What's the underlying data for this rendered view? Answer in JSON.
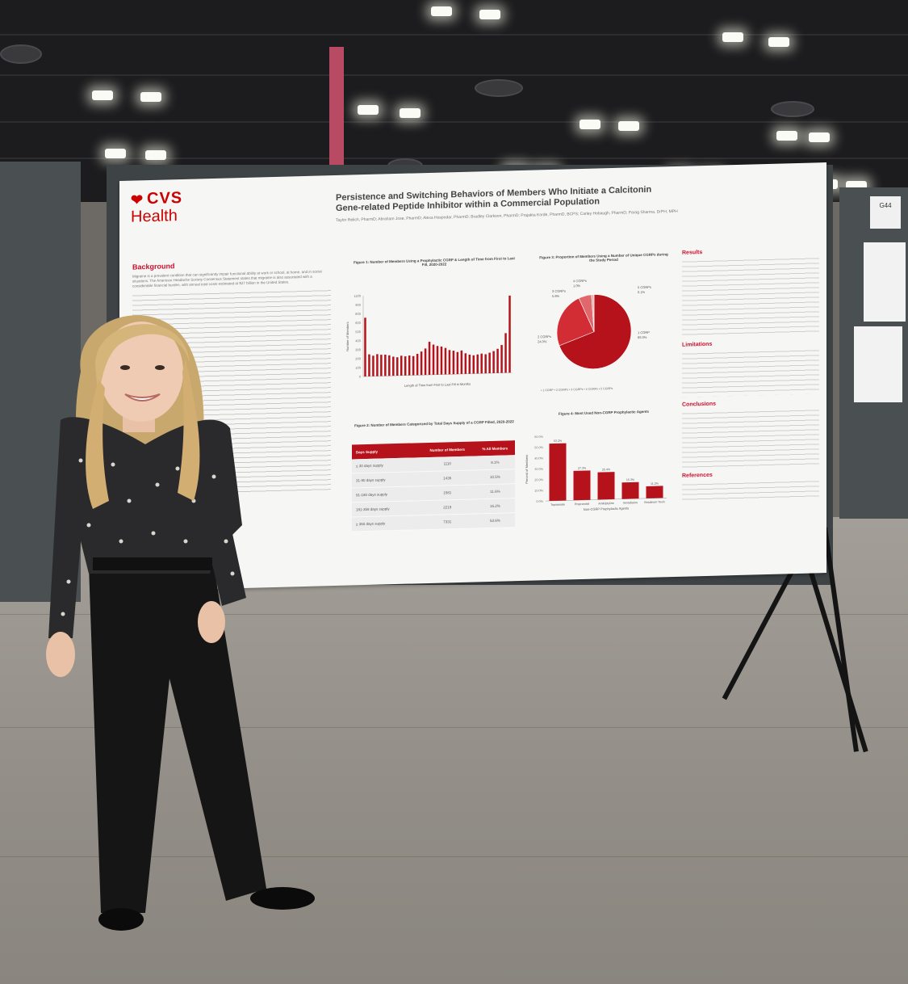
{
  "poster": {
    "logo_cvs": "CVS",
    "logo_health": "Health",
    "title_line1": "Persistence and Switching Behaviors of Members Who Initiate a Calcitonin",
    "title_line2": "Gene-related Peptide Inhibitor within a Commercial Population",
    "authors": "Taylor Relich, PharmD; Abraham Jose, PharmD; Alexa Hospodar, PharmD; Bradley Clarkson, PharmD; Prajakta Korde, PharmD, BCPS; Carley Hobaugh, PharmD; Parag Sharma, DrPH, MPH",
    "background_heading": "Background",
    "background_text": "Migraine is a prevalent condition that can significantly impair functional ability at work or school, at home, and in social situations. The American Headache Society Consensus Statement states that migraine is also associated with a considerable financial burden, with annual total costs estimated at $27 billion in the United States.",
    "results_heading": "Results",
    "limitations_heading": "Limitations",
    "conclusions_heading": "Conclusions",
    "references_heading": "References",
    "fig1_title": "Figure 1: Number of Members Using a Prophylactic CGRP & Length of Time from First to Last Fill, 2020-2022",
    "fig1_ylabel": "Number of Members",
    "fig1_xlabel": "Length of Time from First to Last Fill in Months",
    "fig1_yticks": [
      "1100",
      "900",
      "800",
      "600",
      "500",
      "400",
      "300",
      "200",
      "100",
      "0"
    ],
    "fig2_title": "Figure 2: Number of Members Categorized by Total Days Supply of a CGRP Filled, 2020-2022",
    "table": {
      "headers": [
        "Days Supply",
        "Number of Members",
        "% All Members"
      ],
      "rows": [
        [
          "≤ 30 days supply",
          "1110",
          "8.1%"
        ],
        [
          "31-90 days supply",
          "1435",
          "10.5%"
        ],
        [
          "91-180 days supply",
          "1581",
          "11.6%"
        ],
        [
          "181-359 days supply",
          "2219",
          "16.2%"
        ],
        [
          "≥ 360 days supply",
          "7331",
          "53.6%"
        ]
      ]
    },
    "fig3_title": "Figure 3: Proportion of Members Using a Number of Unique CGRPs during the Study Period",
    "fig3_labels": {
      "four": "4 CGRPs",
      "four_pct": "1.0%",
      "three": "3 CGRPs",
      "three_pct": "5.6%",
      "two": "2 CGRPs",
      "two_pct": "24.0%",
      "one": "1 CGRP",
      "one_pct": "69.3%",
      "five": "5 CGRPs",
      "five_pct": "0.1%"
    },
    "fig3_legend": "• 1 CGRP  • 2 CGRPs  • 3 CGRPs  • 4 CGRPs  • 5 CGRPs",
    "fig4_title": "Figure 4: Most Used Non-CGRP Prophylactic Agents",
    "fig4_ylabel": "Percent of Members",
    "fig4_xlabel": "Non-CGRP Prophylactic Agents",
    "fig4_yticks": [
      "60.0%",
      "50.0%",
      "40.0%",
      "30.0%",
      "20.0%",
      "10.0%",
      "0.0%"
    ]
  },
  "booth_sign": "G44",
  "chart_data": [
    {
      "type": "bar",
      "title": "Figure 1: Number of Members Using a Prophylactic CGRP & Length of Time from First to Last Fill, 2020-2022",
      "xlabel": "Length of Time from First to Last Fill in Months",
      "ylabel": "Number of Members",
      "ylim": [
        0,
        1100
      ],
      "values": [
        800,
        300,
        280,
        300,
        290,
        290,
        280,
        260,
        250,
        270,
        260,
        270,
        260,
        290,
        320,
        360,
        450,
        410,
        390,
        380,
        360,
        330,
        320,
        300,
        320,
        280,
        260,
        250,
        260,
        270,
        260,
        280,
        300,
        330,
        380,
        540,
        1050
      ]
    },
    {
      "type": "pie",
      "title": "Figure 3: Proportion of Members Using a Number of Unique CGRPs during the Study Period",
      "categories": [
        "1 CGRP",
        "2 CGRPs",
        "3 CGRPs",
        "4 CGRPs",
        "5 CGRPs"
      ],
      "values": [
        69.3,
        24.0,
        5.6,
        1.0,
        0.1
      ]
    },
    {
      "type": "bar",
      "title": "Figure 4: Most Used Non-CGRP Prophylactic Agents",
      "xlabel": "Non-CGRP Prophylactic Agents",
      "ylabel": "Percent of Members",
      "categories": [
        "Topiramate",
        "Propranolol",
        "Amitriptyline",
        "Venlafaxine",
        "Botulinum Toxin"
      ],
      "values": [
        53.2,
        27.3,
        25.4,
        15.3,
        11.2
      ],
      "ylim": [
        0,
        60
      ]
    }
  ]
}
